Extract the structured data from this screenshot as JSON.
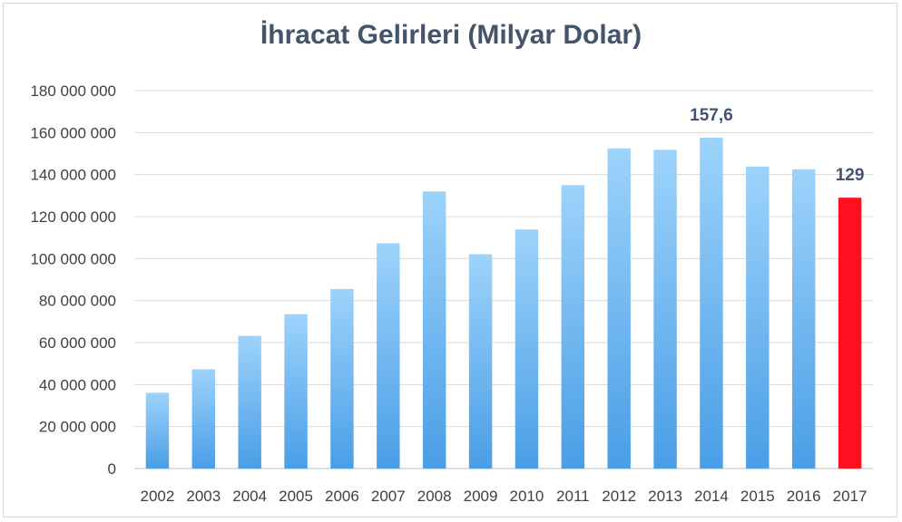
{
  "chart_data": {
    "type": "bar",
    "title": "İhracat Gelirleri (Milyar Dolar)",
    "xlabel": "",
    "ylabel": "",
    "categories": [
      "2002",
      "2003",
      "2004",
      "2005",
      "2006",
      "2007",
      "2008",
      "2009",
      "2010",
      "2011",
      "2012",
      "2013",
      "2014",
      "2015",
      "2016",
      "2017"
    ],
    "values": [
      36100000,
      47300000,
      63200000,
      73500000,
      85500000,
      107300000,
      132000000,
      102100000,
      113900000,
      135000000,
      152500000,
      151800000,
      157600000,
      143800000,
      142500000,
      129000000
    ],
    "ylim": [
      0,
      180000000
    ],
    "yticks": [
      "0",
      "20 000 000",
      "40 000 000",
      "60 000 000",
      "80 000 000",
      "100 000 000",
      "120 000 000",
      "140 000 000",
      "160 000 000",
      "180 000 000"
    ],
    "data_labels": [
      {
        "category": "2014",
        "text": "157,6"
      },
      {
        "category": "2017",
        "text": "129"
      }
    ],
    "grid": true,
    "legend": "none",
    "colors": {
      "bar_gradient_top": "#9dd3fb",
      "bar_gradient_bottom": "#4a9ee6",
      "highlight": "#ff1020",
      "title": "#44546a"
    },
    "highlight_category": "2017"
  }
}
